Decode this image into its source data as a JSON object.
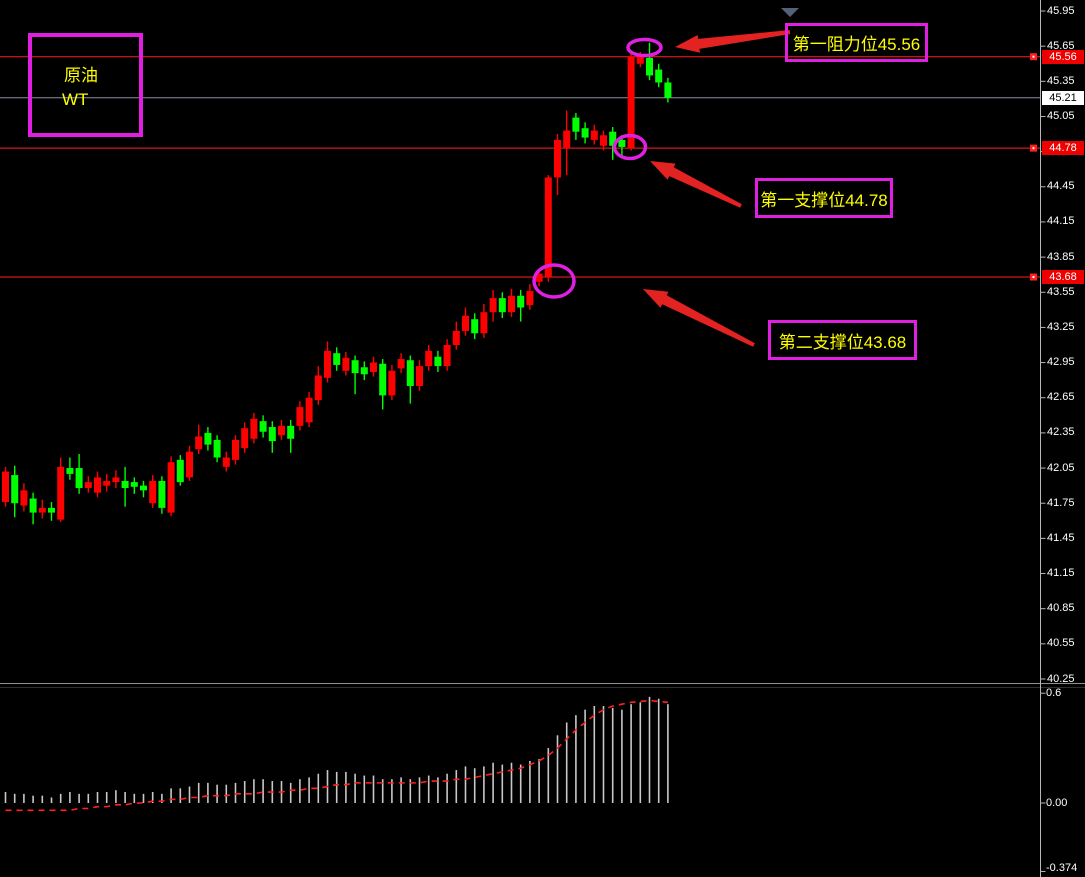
{
  "symbol_box": {
    "line1": "原油",
    "line2": "WT"
  },
  "annotations": {
    "resistance1": {
      "label": "第一阻力位45.56"
    },
    "support1": {
      "label": "第一支撑位44.78"
    },
    "support2": {
      "label": "第二支撑位43.68"
    }
  },
  "price_labels": {
    "resistance1": "45.56",
    "current": "45.21",
    "support1": "44.78",
    "support2": "43.68"
  },
  "sub_axis": {
    "top": "0.6",
    "zero": "0.00",
    "bottom": "-0.374"
  },
  "colors": {
    "background": "#000000",
    "bull": "#ff0000",
    "bear": "#00ff00",
    "level_line": "#ff2020",
    "current_line": "#8a8f9e",
    "annotation": "#e020e0",
    "annotation_text": "#ffff00",
    "histogram": "#c8c8c8",
    "signal": "#ff2020",
    "axis_text": "#ffffff",
    "tag_red_bg": "#ee0000",
    "tag_current_bg": "#ffffff"
  },
  "chart_data": {
    "type": "candlestick",
    "title": "原油 WT",
    "convention": "red = bullish, green = bearish",
    "price_axis_ticks": [
      45.95,
      45.65,
      45.35,
      45.05,
      44.75,
      44.45,
      44.15,
      43.85,
      43.55,
      43.25,
      42.95,
      42.65,
      42.35,
      42.05,
      41.75,
      41.45,
      41.15,
      40.85,
      40.55,
      40.25
    ],
    "levels": {
      "resistance1": 45.56,
      "current_price": 45.21,
      "support1": 44.78,
      "support2": 43.68
    },
    "ylim": [
      40.1,
      45.98
    ],
    "candles_ohlc": [
      [
        41.76,
        42.06,
        41.72,
        42.02
      ],
      [
        41.99,
        42.07,
        41.63,
        41.75
      ],
      [
        41.73,
        41.92,
        41.68,
        41.86
      ],
      [
        41.79,
        41.84,
        41.57,
        41.67
      ],
      [
        41.67,
        41.78,
        41.62,
        41.71
      ],
      [
        41.71,
        41.76,
        41.6,
        41.67
      ],
      [
        41.61,
        42.14,
        41.59,
        42.06
      ],
      [
        42.05,
        42.14,
        41.95,
        42.0
      ],
      [
        42.05,
        42.17,
        41.83,
        41.88
      ],
      [
        41.88,
        41.98,
        41.84,
        41.93
      ],
      [
        41.84,
        42.02,
        41.8,
        41.97
      ],
      [
        41.9,
        42.0,
        41.85,
        41.94
      ],
      [
        41.93,
        42.03,
        41.88,
        41.97
      ],
      [
        41.94,
        42.06,
        41.72,
        41.88
      ],
      [
        41.93,
        41.97,
        41.83,
        41.89
      ],
      [
        41.9,
        41.94,
        41.8,
        41.86
      ],
      [
        41.75,
        41.99,
        41.71,
        41.94
      ],
      [
        41.94,
        41.98,
        41.66,
        41.71
      ],
      [
        41.67,
        42.15,
        41.64,
        42.1
      ],
      [
        42.12,
        42.16,
        41.9,
        41.93
      ],
      [
        41.97,
        42.24,
        41.94,
        42.19
      ],
      [
        42.21,
        42.42,
        42.17,
        42.32
      ],
      [
        42.35,
        42.4,
        42.2,
        42.25
      ],
      [
        42.29,
        42.33,
        42.1,
        42.14
      ],
      [
        42.06,
        42.19,
        42.02,
        42.14
      ],
      [
        42.12,
        42.33,
        42.08,
        42.29
      ],
      [
        42.22,
        42.44,
        42.18,
        42.39
      ],
      [
        42.3,
        42.52,
        42.26,
        42.47
      ],
      [
        42.45,
        42.5,
        42.31,
        42.36
      ],
      [
        42.4,
        42.45,
        42.18,
        42.28
      ],
      [
        42.33,
        42.46,
        42.29,
        42.41
      ],
      [
        42.41,
        42.46,
        42.18,
        42.3
      ],
      [
        42.41,
        42.62,
        42.37,
        42.57
      ],
      [
        42.44,
        42.7,
        42.4,
        42.65
      ],
      [
        42.63,
        42.92,
        42.59,
        42.84
      ],
      [
        42.82,
        43.13,
        42.78,
        43.05
      ],
      [
        43.03,
        43.08,
        42.88,
        42.93
      ],
      [
        42.88,
        43.04,
        42.84,
        42.99
      ],
      [
        42.97,
        43.01,
        42.68,
        42.86
      ],
      [
        42.91,
        42.96,
        42.8,
        42.85
      ],
      [
        42.87,
        43.0,
        42.83,
        42.95
      ],
      [
        42.94,
        42.98,
        42.55,
        42.67
      ],
      [
        42.67,
        42.93,
        42.63,
        42.88
      ],
      [
        42.9,
        43.03,
        42.86,
        42.98
      ],
      [
        42.97,
        43.01,
        42.6,
        42.75
      ],
      [
        42.75,
        42.97,
        42.71,
        42.92
      ],
      [
        42.92,
        43.1,
        42.88,
        43.05
      ],
      [
        43.0,
        43.05,
        42.87,
        42.92
      ],
      [
        42.92,
        43.15,
        42.88,
        43.1
      ],
      [
        43.1,
        43.3,
        43.06,
        43.22
      ],
      [
        43.22,
        43.42,
        43.18,
        43.35
      ],
      [
        43.32,
        43.37,
        43.15,
        43.2
      ],
      [
        43.2,
        43.45,
        43.16,
        43.38
      ],
      [
        43.38,
        43.57,
        43.3,
        43.5
      ],
      [
        43.5,
        43.55,
        43.33,
        43.38
      ],
      [
        43.38,
        43.58,
        43.34,
        43.52
      ],
      [
        43.52,
        43.57,
        43.3,
        43.42
      ],
      [
        43.44,
        43.62,
        43.4,
        43.56
      ],
      [
        43.64,
        43.75,
        43.6,
        43.71
      ],
      [
        43.68,
        44.55,
        43.64,
        44.53
      ],
      [
        44.53,
        44.9,
        44.38,
        44.85
      ],
      [
        44.78,
        45.1,
        44.55,
        44.93
      ],
      [
        45.04,
        45.08,
        44.85,
        44.92
      ],
      [
        44.95,
        45.0,
        44.82,
        44.87
      ],
      [
        44.85,
        44.98,
        44.81,
        44.93
      ],
      [
        44.8,
        44.93,
        44.76,
        44.89
      ],
      [
        44.92,
        44.96,
        44.68,
        44.8
      ],
      [
        44.85,
        44.89,
        44.7,
        44.79
      ],
      [
        44.78,
        45.6,
        44.76,
        45.56
      ],
      [
        45.5,
        45.6,
        45.47,
        45.56
      ],
      [
        45.55,
        45.68,
        45.36,
        45.4
      ],
      [
        45.45,
        45.5,
        45.3,
        45.34
      ],
      [
        45.34,
        45.38,
        45.17,
        45.21
      ]
    ],
    "osma_histogram": [
      0.06,
      0.05,
      0.05,
      0.04,
      0.04,
      0.03,
      0.05,
      0.06,
      0.05,
      0.05,
      0.06,
      0.06,
      0.07,
      0.06,
      0.05,
      0.05,
      0.06,
      0.05,
      0.08,
      0.08,
      0.09,
      0.11,
      0.11,
      0.1,
      0.1,
      0.11,
      0.12,
      0.13,
      0.13,
      0.12,
      0.12,
      0.11,
      0.13,
      0.14,
      0.16,
      0.18,
      0.17,
      0.17,
      0.16,
      0.15,
      0.15,
      0.13,
      0.13,
      0.14,
      0.13,
      0.14,
      0.15,
      0.14,
      0.16,
      0.18,
      0.2,
      0.19,
      0.2,
      0.22,
      0.21,
      0.22,
      0.21,
      0.23,
      0.24,
      0.3,
      0.37,
      0.44,
      0.48,
      0.51,
      0.53,
      0.53,
      0.52,
      0.51,
      0.54,
      0.55,
      0.58,
      0.57,
      0.54
    ],
    "osma_signal": [
      -0.04,
      -0.04,
      -0.04,
      -0.04,
      -0.04,
      -0.04,
      -0.04,
      -0.04,
      -0.03,
      -0.03,
      -0.02,
      -0.02,
      -0.01,
      -0.01,
      0.0,
      0.0,
      0.01,
      0.01,
      0.02,
      0.02,
      0.03,
      0.03,
      0.04,
      0.04,
      0.04,
      0.05,
      0.05,
      0.05,
      0.06,
      0.06,
      0.06,
      0.07,
      0.07,
      0.08,
      0.08,
      0.09,
      0.1,
      0.1,
      0.11,
      0.11,
      0.11,
      0.11,
      0.11,
      0.11,
      0.11,
      0.11,
      0.12,
      0.12,
      0.12,
      0.13,
      0.13,
      0.14,
      0.15,
      0.16,
      0.17,
      0.18,
      0.19,
      0.21,
      0.23,
      0.26,
      0.3,
      0.35,
      0.4,
      0.44,
      0.48,
      0.51,
      0.53,
      0.54,
      0.55,
      0.555,
      0.56,
      0.555,
      0.55
    ],
    "sub_axis": {
      "max": 0.6,
      "zero": 0.0,
      "min": -0.374
    },
    "grid": "off",
    "legend": "none"
  }
}
